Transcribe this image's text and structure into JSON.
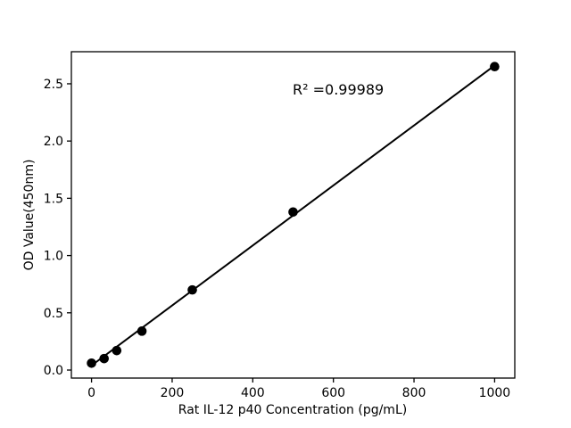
{
  "chart_data": {
    "type": "scatter",
    "title": "",
    "xlabel": "Rat IL-12 p40 Concentration (pg/mL)",
    "ylabel": "OD Value(450nm)",
    "annotation": "R² =0.99989",
    "x": [
      0,
      31.25,
      62.5,
      125,
      250,
      500,
      1000
    ],
    "y": [
      0.06,
      0.1,
      0.17,
      0.34,
      0.7,
      1.38,
      2.65
    ],
    "fit_line": {
      "x": [
        0,
        1000
      ],
      "y": [
        0.04,
        2.66
      ]
    },
    "xlim": [
      -50,
      1050
    ],
    "ylim": [
      -0.07,
      2.78
    ],
    "xtick_values": [
      0,
      200,
      400,
      600,
      800,
      1000
    ],
    "xtick_labels": [
      "0",
      "200",
      "400",
      "600",
      "800",
      "1000"
    ],
    "ytick_values": [
      0.0,
      0.5,
      1.0,
      1.5,
      2.0,
      2.5
    ],
    "ytick_labels": [
      "0.0",
      "0.5",
      "1.0",
      "1.5",
      "2.0",
      "2.5"
    ],
    "grid": "off",
    "legend": "none",
    "marker_color": "#000000",
    "line_color": "#000000",
    "axis_color": "#000000",
    "background_color": "#ffffff"
  }
}
